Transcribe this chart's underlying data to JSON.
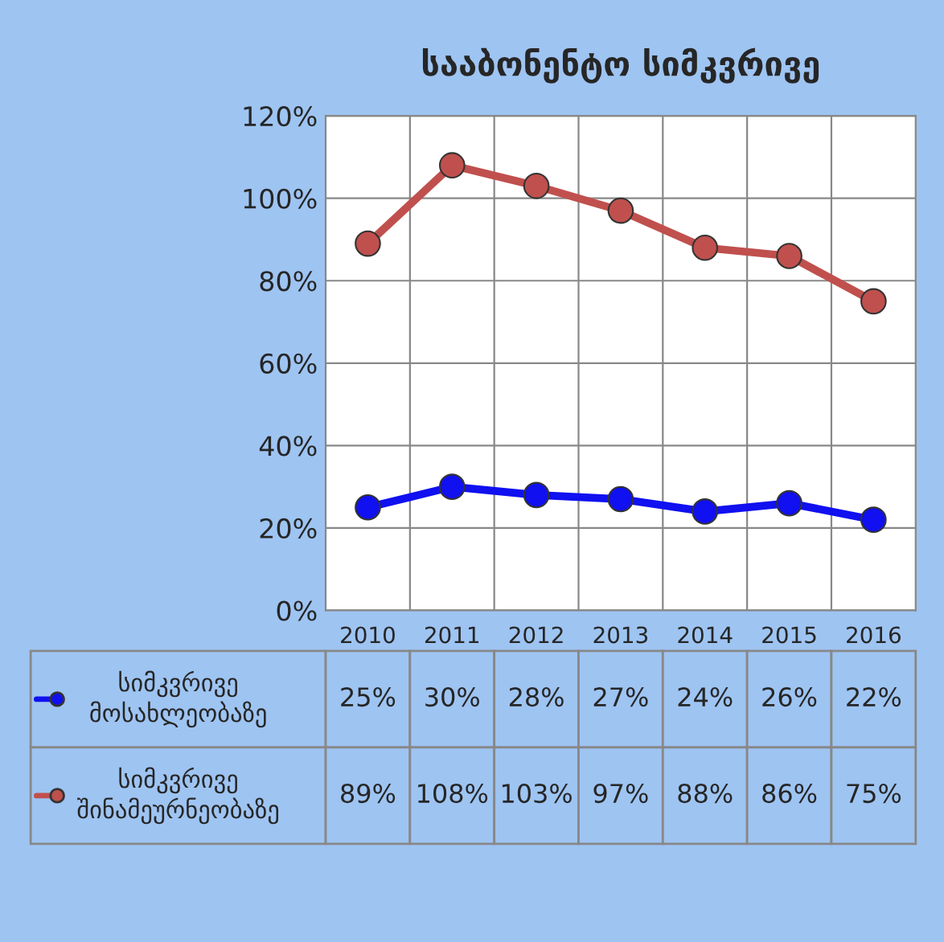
{
  "chart_data": {
    "type": "line",
    "title": "სააბონენტო სიმკვრივე",
    "categories": [
      "2010",
      "2011",
      "2012",
      "2013",
      "2014",
      "2015",
      "2016"
    ],
    "series": [
      {
        "name": "სიმკვრივე მოსახლეობაზე",
        "color": "#1010f0",
        "values": [
          25,
          30,
          28,
          27,
          24,
          26,
          22
        ],
        "value_labels": [
          "25%",
          "30%",
          "28%",
          "27%",
          "24%",
          "26%",
          "22%"
        ]
      },
      {
        "name": "სიმკვრივე შინამეურნეობაზე",
        "color": "#c0504d",
        "values": [
          89,
          108,
          103,
          97,
          88,
          86,
          75
        ],
        "value_labels": [
          "89%",
          "108%",
          "103%",
          "97%",
          "88%",
          "86%",
          "75%"
        ]
      }
    ],
    "ylim": [
      0,
      120
    ],
    "yticks": [
      {
        "value": 0,
        "label": "0%"
      },
      {
        "value": 20,
        "label": "20%"
      },
      {
        "value": 40,
        "label": "40%"
      },
      {
        "value": 60,
        "label": "60%"
      },
      {
        "value": 80,
        "label": "80%"
      },
      {
        "value": 100,
        "label": "100%"
      },
      {
        "value": 120,
        "label": "120%"
      }
    ],
    "grid": true,
    "marker": "circle",
    "line_style": "solid",
    "legend": "bottom"
  }
}
